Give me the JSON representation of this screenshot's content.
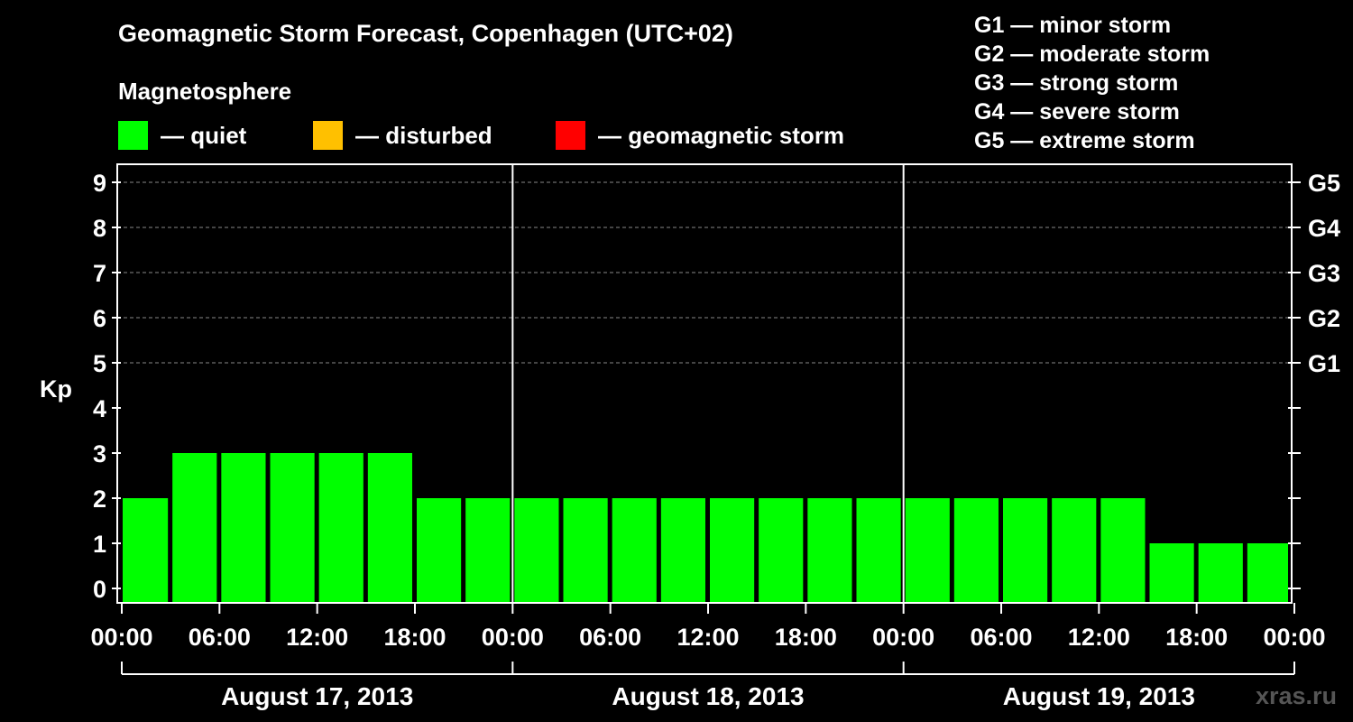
{
  "title": "Geomagnetic Storm Forecast, Copenhagen (UTC+02)",
  "subtitle": "Magnetosphere",
  "legend": [
    {
      "label": "— quiet",
      "color": "#00ff00"
    },
    {
      "label": "— disturbed",
      "color": "#ffc000"
    },
    {
      "label": "— geomagnetic storm",
      "color": "#ff0000"
    }
  ],
  "g_levels": [
    "G1 — minor storm",
    "G2 — moderate storm",
    "G3 — strong storm",
    "G4 — severe storm",
    "G5 — extreme storm"
  ],
  "watermark": "xras.ru",
  "chart_data": {
    "type": "bar",
    "ylabel": "Kp",
    "ylim": [
      0,
      9
    ],
    "yticks": [
      0,
      1,
      2,
      3,
      4,
      5,
      6,
      7,
      8,
      9
    ],
    "right_ticks": [
      {
        "kp": 5,
        "label": "G1"
      },
      {
        "kp": 6,
        "label": "G2"
      },
      {
        "kp": 7,
        "label": "G3"
      },
      {
        "kp": 8,
        "label": "G4"
      },
      {
        "kp": 9,
        "label": "G5"
      }
    ],
    "x_tick_labels": [
      "00:00",
      "06:00",
      "12:00",
      "18:00",
      "00:00",
      "06:00",
      "12:00",
      "18:00",
      "00:00",
      "06:00",
      "12:00",
      "18:00",
      "00:00"
    ],
    "days": [
      "August 17, 2013",
      "August 18, 2013",
      "August 19, 2013"
    ],
    "bar_start_hours": [
      0,
      3,
      6,
      9,
      12,
      15,
      18,
      21,
      24,
      27,
      30,
      33,
      36,
      39,
      42,
      45,
      48,
      51,
      54,
      57,
      60,
      63,
      66,
      69
    ],
    "values": [
      2,
      3,
      3,
      3,
      3,
      3,
      2,
      2,
      2,
      2,
      2,
      2,
      2,
      2,
      2,
      2,
      2,
      2,
      2,
      2,
      2,
      1,
      1,
      1
    ],
    "bar_color": "#00ff00",
    "grid": true
  }
}
